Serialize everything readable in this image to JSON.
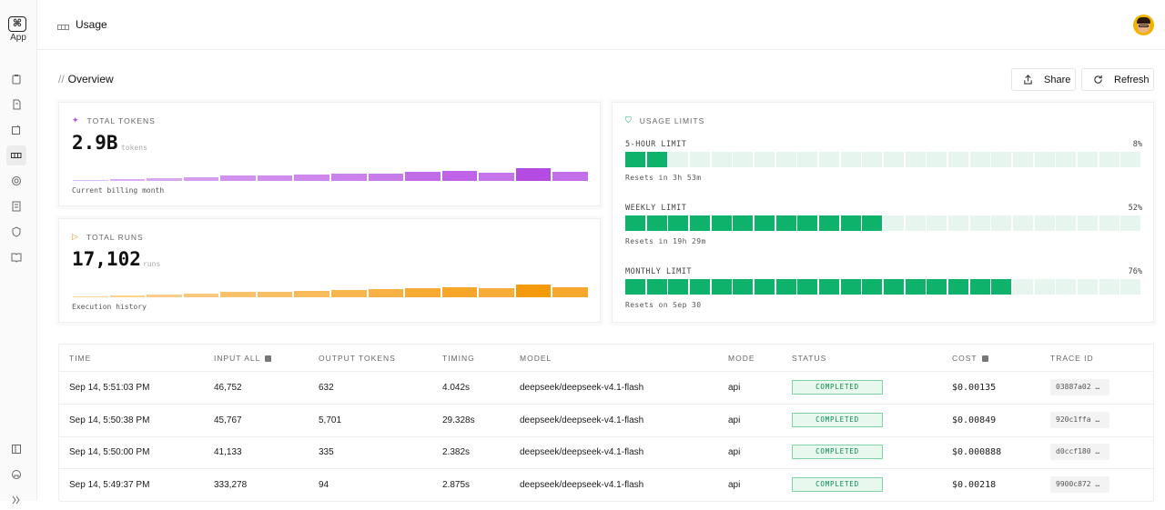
{
  "app": {
    "label": "App",
    "logo_glyph": "⌘"
  },
  "sidebar": {
    "items": [
      {
        "icon": "clipboard-icon",
        "active": false
      },
      {
        "icon": "file-icon",
        "active": false
      },
      {
        "icon": "edit-icon",
        "active": false
      },
      {
        "icon": "usage-icon",
        "active": true
      },
      {
        "icon": "target-icon",
        "active": false
      },
      {
        "icon": "document-icon",
        "active": false
      },
      {
        "icon": "shield-icon",
        "active": false
      },
      {
        "icon": "book-icon",
        "active": false
      }
    ],
    "bottom": [
      "panel-icon",
      "github-icon",
      "collapse-icon"
    ]
  },
  "header": {
    "title": "Usage"
  },
  "overview": {
    "title": "Overview",
    "share_label": "Share",
    "refresh_label": "Refresh"
  },
  "tokens_card": {
    "label": "TOTAL TOKENS",
    "value": "2.9B",
    "unit": "tokens",
    "footer": "Current billing month",
    "color": "#b44be3",
    "bar_levels": [
      0.05,
      0.12,
      0.15,
      0.2,
      0.28,
      0.3,
      0.33,
      0.38,
      0.42,
      0.5,
      0.55,
      0.45,
      0.7,
      0.48
    ]
  },
  "runs_card": {
    "label": "TOTAL RUNS",
    "value": "17,102",
    "unit": "runs",
    "footer": "Execution history",
    "color": "#f59a0a",
    "bar_levels": [
      0.06,
      0.12,
      0.15,
      0.22,
      0.28,
      0.3,
      0.34,
      0.4,
      0.45,
      0.52,
      0.56,
      0.5,
      0.72,
      0.55
    ]
  },
  "limits_card": {
    "label": "USAGE LIMITS",
    "segments_total": 24,
    "limits": [
      {
        "name": "5-HOUR LIMIT",
        "pct": "8%",
        "filled": 2,
        "reset": "Resets in 3h 53m"
      },
      {
        "name": "WEEKLY LIMIT",
        "pct": "52%",
        "filled": 12,
        "reset": "Resets in 19h 29m"
      },
      {
        "name": "MONTHLY LIMIT",
        "pct": "76%",
        "filled": 18,
        "reset": "Resets on Sep 30"
      }
    ]
  },
  "table": {
    "headers": {
      "time": "TIME",
      "input": "INPUT ALL",
      "output": "OUTPUT TOKENS",
      "timing": "TIMING",
      "model": "MODEL",
      "mode": "MODE",
      "status": "STATUS",
      "cost": "COST",
      "trace": "TRACE ID"
    },
    "rows": [
      {
        "time": "Sep 14, 5:51:03 PM",
        "input": "46,752",
        "output": "632",
        "timing": "4.042s",
        "model": "deepseek/deepseek-v4.1-flash",
        "mode": "api",
        "status": "COMPLETED",
        "cost": "$0.00135",
        "trace": "03887a02 …"
      },
      {
        "time": "Sep 14, 5:50:38 PM",
        "input": "45,767",
        "output": "5,701",
        "timing": "29.328s",
        "model": "deepseek/deepseek-v4.1-flash",
        "mode": "api",
        "status": "COMPLETED",
        "cost": "$0.00849",
        "trace": "920c1ffa …"
      },
      {
        "time": "Sep 14, 5:50:00 PM",
        "input": "41,133",
        "output": "335",
        "timing": "2.382s",
        "model": "deepseek/deepseek-v4.1-flash",
        "mode": "api",
        "status": "COMPLETED",
        "cost": "$0.000888",
        "trace": "d0ccf180 …"
      },
      {
        "time": "Sep 14, 5:49:37 PM",
        "input": "333,278",
        "output": "94",
        "timing": "2.875s",
        "model": "deepseek/deepseek-v4.1-flash",
        "mode": "api",
        "status": "COMPLETED",
        "cost": "$0.00218",
        "trace": "9900c872 …"
      }
    ]
  }
}
